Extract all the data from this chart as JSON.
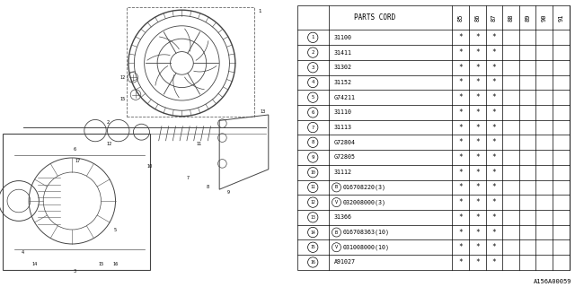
{
  "diagram_code": "A156A00059",
  "rows": [
    {
      "num": "1",
      "part": "31100",
      "B": false,
      "V": false,
      "marks": [
        1,
        1,
        1,
        0,
        0,
        0,
        0
      ]
    },
    {
      "num": "2",
      "part": "31411",
      "B": false,
      "V": false,
      "marks": [
        1,
        1,
        1,
        0,
        0,
        0,
        0
      ]
    },
    {
      "num": "3",
      "part": "31302",
      "B": false,
      "V": false,
      "marks": [
        1,
        1,
        1,
        0,
        0,
        0,
        0
      ]
    },
    {
      "num": "4",
      "part": "31152",
      "B": false,
      "V": false,
      "marks": [
        1,
        1,
        1,
        0,
        0,
        0,
        0
      ]
    },
    {
      "num": "5",
      "part": "G74211",
      "B": false,
      "V": false,
      "marks": [
        1,
        1,
        1,
        0,
        0,
        0,
        0
      ]
    },
    {
      "num": "6",
      "part": "31110",
      "B": false,
      "V": false,
      "marks": [
        1,
        1,
        1,
        0,
        0,
        0,
        0
      ]
    },
    {
      "num": "7",
      "part": "31113",
      "B": false,
      "V": false,
      "marks": [
        1,
        1,
        1,
        0,
        0,
        0,
        0
      ]
    },
    {
      "num": "8",
      "part": "G72804",
      "B": false,
      "V": false,
      "marks": [
        1,
        1,
        1,
        0,
        0,
        0,
        0
      ]
    },
    {
      "num": "9",
      "part": "G72805",
      "B": false,
      "V": false,
      "marks": [
        1,
        1,
        1,
        0,
        0,
        0,
        0
      ]
    },
    {
      "num": "10",
      "part": "31112",
      "B": false,
      "V": false,
      "marks": [
        1,
        1,
        1,
        0,
        0,
        0,
        0
      ]
    },
    {
      "num": "11",
      "part": "016708220(3)",
      "B": true,
      "V": false,
      "marks": [
        1,
        1,
        1,
        0,
        0,
        0,
        0
      ]
    },
    {
      "num": "12",
      "part": "032008000(3)",
      "B": false,
      "V": true,
      "marks": [
        1,
        1,
        1,
        0,
        0,
        0,
        0
      ]
    },
    {
      "num": "13",
      "part": "31366",
      "B": false,
      "V": false,
      "marks": [
        1,
        1,
        1,
        0,
        0,
        0,
        0
      ]
    },
    {
      "num": "14",
      "part": "016708363(10)",
      "B": true,
      "V": false,
      "marks": [
        1,
        1,
        1,
        0,
        0,
        0,
        0
      ]
    },
    {
      "num": "15",
      "part": "031008000(10)",
      "B": false,
      "V": true,
      "marks": [
        1,
        1,
        1,
        0,
        0,
        0,
        0
      ]
    },
    {
      "num": "16",
      "part": "A91027",
      "B": false,
      "V": false,
      "marks": [
        1,
        1,
        1,
        0,
        0,
        0,
        0
      ]
    }
  ],
  "year_labels": [
    "85",
    "86",
    "87",
    "88",
    "89",
    "90",
    "91"
  ],
  "bg_color": "#ffffff",
  "line_color": "#000000",
  "text_color": "#000000"
}
